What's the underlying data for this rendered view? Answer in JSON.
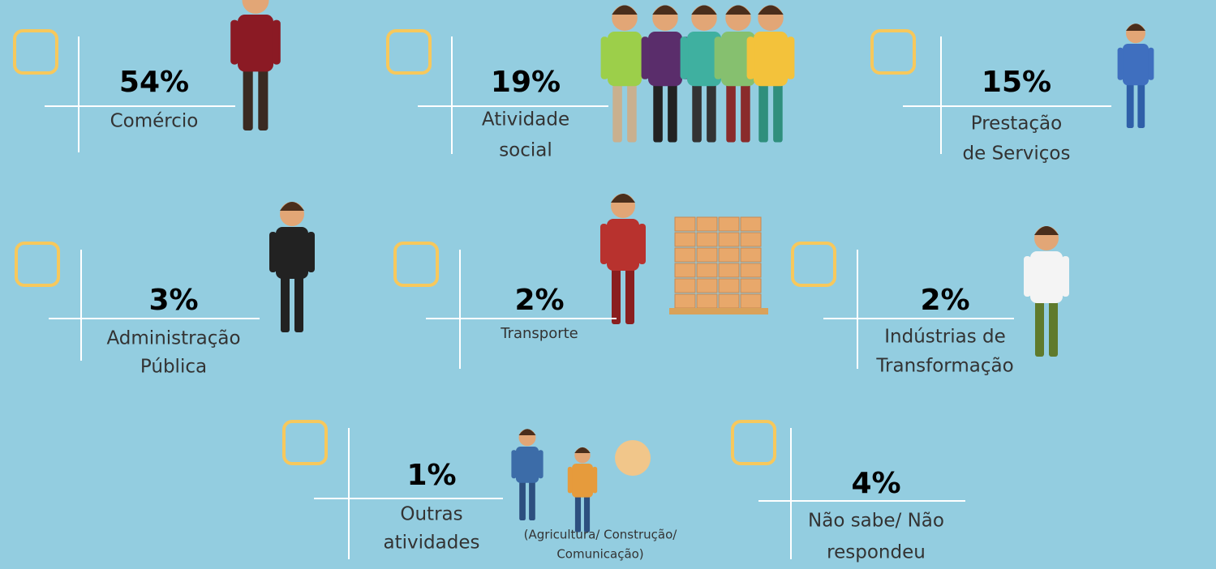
{
  "items": [
    {
      "percent": "54%",
      "label": [
        "Comércio"
      ]
    },
    {
      "percent": "19%",
      "label": [
        "Atividade",
        "social"
      ]
    },
    {
      "percent": "15%",
      "label": [
        "Prestação",
        "de Serviços"
      ]
    },
    {
      "percent": "3%",
      "label": [
        "Administração",
        "Pública"
      ]
    },
    {
      "percent": "2%",
      "label": [
        "Transporte"
      ]
    },
    {
      "percent": "2%",
      "label": [
        "Indústrias de",
        "Transformação"
      ]
    },
    {
      "percent": "1%",
      "label": [
        "Outras",
        "atividades"
      ],
      "note": [
        "(Agricultura/ Construção/",
        "Comunicação)"
      ]
    },
    {
      "percent": "4%",
      "label": [
        "Não sabe/ Não",
        "respondeu"
      ]
    }
  ]
}
